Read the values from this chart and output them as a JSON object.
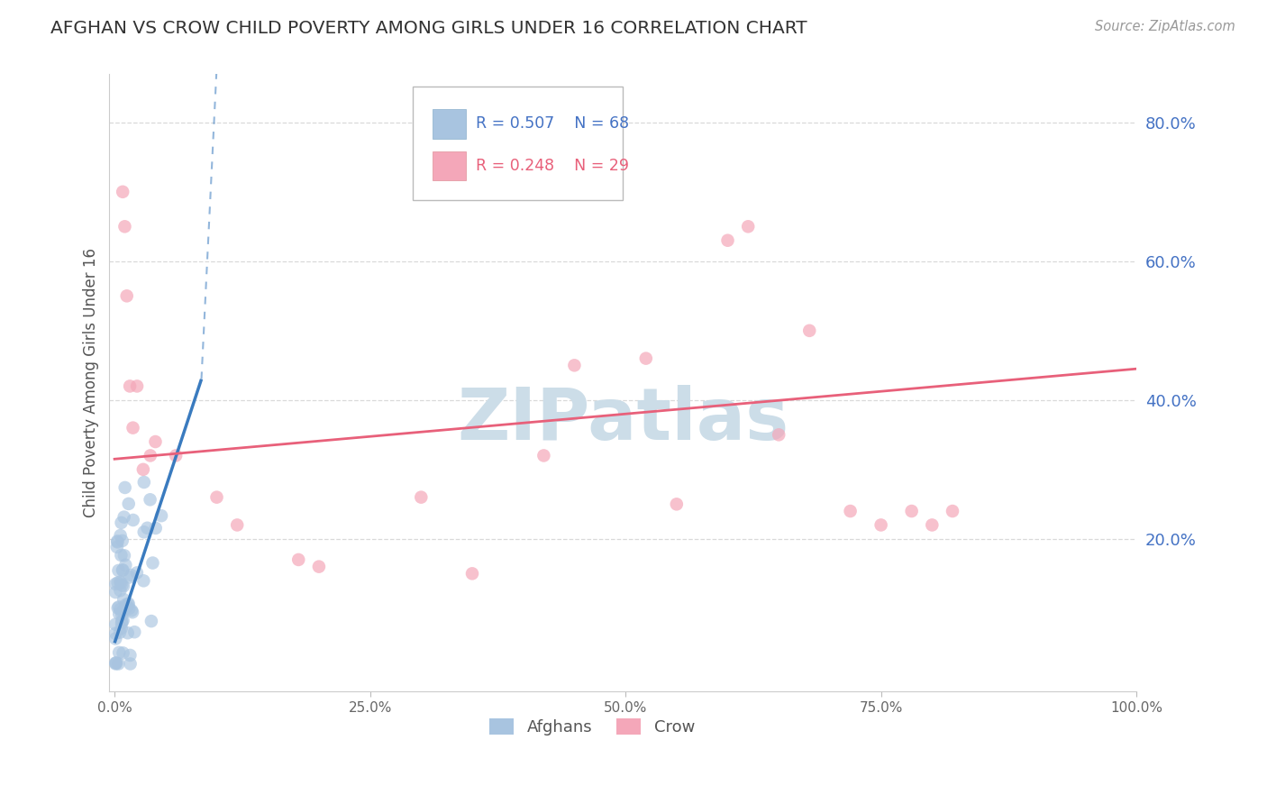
{
  "title": "AFGHAN VS CROW CHILD POVERTY AMONG GIRLS UNDER 16 CORRELATION CHART",
  "source": "Source: ZipAtlas.com",
  "ylabel": "Child Poverty Among Girls Under 16",
  "xlabel_afghans": "Afghans",
  "xlabel_crow": "Crow",
  "xlim": [
    -0.005,
    1.0
  ],
  "ylim": [
    -0.02,
    0.87
  ],
  "xtick_vals": [
    0,
    0.25,
    0.5,
    0.75,
    1.0
  ],
  "xtick_labels": [
    "0.0%",
    "25.0%",
    "50.0%",
    "75.0%",
    "100.0%"
  ],
  "ytick_vals": [
    0.2,
    0.4,
    0.6,
    0.8
  ],
  "ytick_labels": [
    "20.0%",
    "40.0%",
    "60.0%",
    "80.0%"
  ],
  "legend_r_afghans": "R = 0.507",
  "legend_n_afghans": "N = 68",
  "legend_r_crow": "R = 0.248",
  "legend_n_crow": "N = 29",
  "afghans_scatter_color": "#a8c4e0",
  "crow_scatter_color": "#f4a7b9",
  "afghans_line_color": "#3a7bbf",
  "crow_line_color": "#e8607a",
  "legend_text_blue": "#4472c4",
  "legend_text_pink": "#e8607a",
  "ytick_color": "#4472c4",
  "grid_color": "#d0d0d0",
  "watermark_color": "#ccdde8",
  "bg_color": "#ffffff",
  "title_color": "#333333",
  "source_color": "#999999",
  "ylabel_color": "#555555",
  "xtick_color": "#666666"
}
